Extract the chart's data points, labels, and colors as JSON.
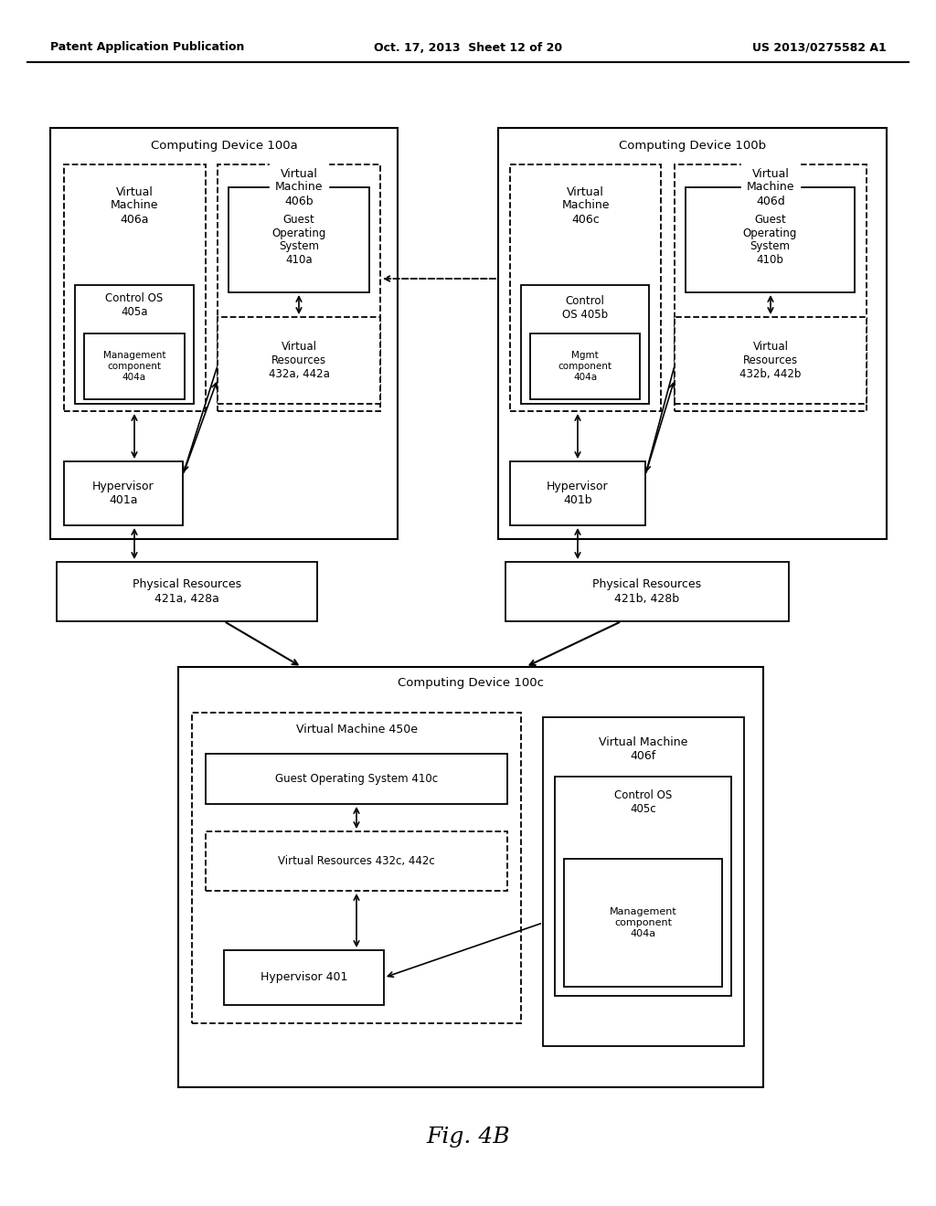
{
  "header_left": "Patent Application Publication",
  "header_center": "Oct. 17, 2013  Sheet 12 of 20",
  "header_right": "US 2013/0275582 A1",
  "figure_label": "Fig. 4B",
  "bg_color": "#ffffff"
}
